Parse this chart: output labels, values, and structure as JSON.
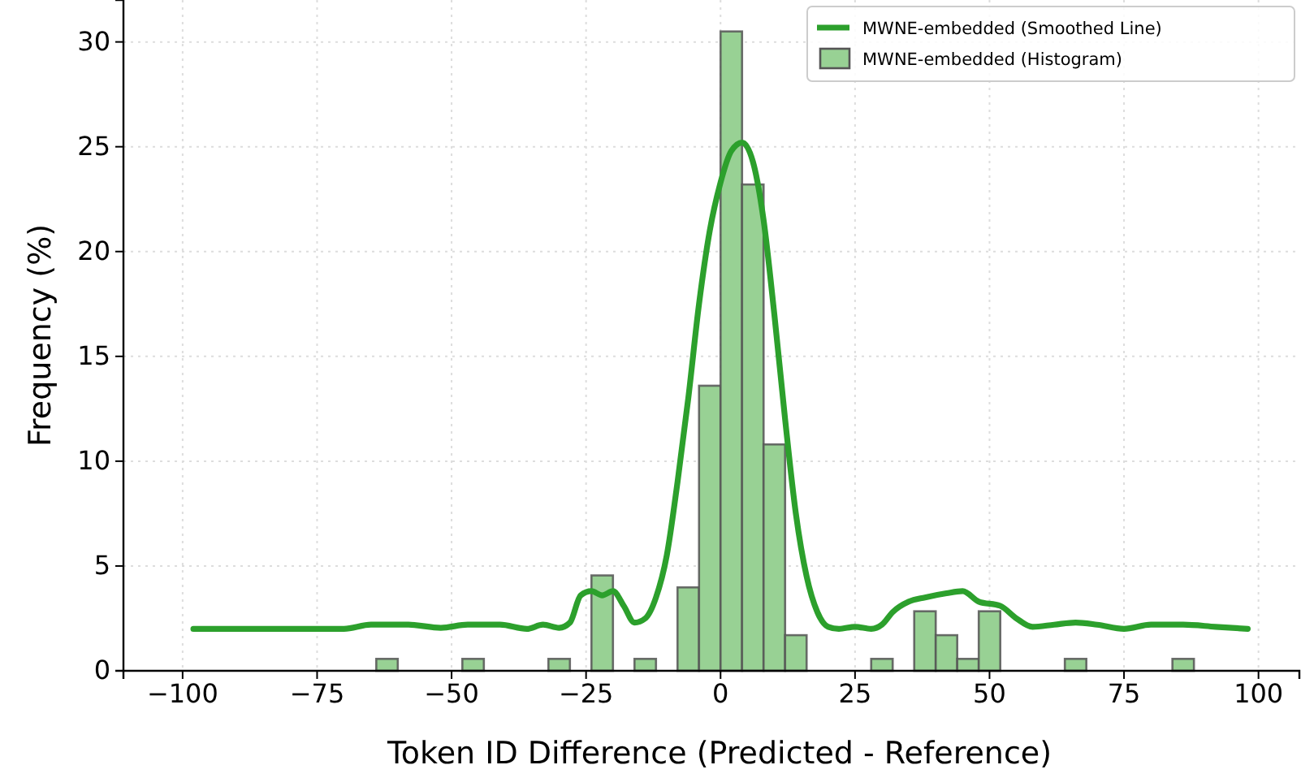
{
  "chart_data": {
    "type": "histogram",
    "xlabel": "Token ID Difference (Predicted - Reference)",
    "ylabel": "Frequency (%)",
    "xlim": [
      -111,
      107.6
    ],
    "ylim": [
      0,
      32
    ],
    "xticks": [
      {
        "value": -100,
        "label": "−100"
      },
      {
        "value": -75,
        "label": "−75"
      },
      {
        "value": -50,
        "label": "−50"
      },
      {
        "value": -25,
        "label": "−25"
      },
      0,
      25,
      50,
      75,
      100
    ],
    "yticks": [
      0,
      5,
      10,
      15,
      20,
      25,
      30
    ],
    "grid": true,
    "legend": "top right",
    "series": [
      {
        "type": "line",
        "name": "MWNE-embedded (Smoothed Line)",
        "color": "#2ca02c",
        "x": [
          -98,
          -70,
          -65,
          -58,
          -52,
          -47,
          -41,
          -36,
          -33,
          -30,
          -28,
          -26,
          -24,
          -22,
          -20,
          -18,
          -16,
          -14,
          -12,
          -10,
          -8,
          -6,
          -4,
          -2,
          0,
          2,
          4,
          6,
          8,
          10,
          12,
          14,
          16,
          18,
          20,
          22,
          25,
          28,
          30,
          32,
          35,
          38,
          42,
          45,
          48,
          52,
          55,
          58,
          62,
          66,
          70,
          75,
          80,
          86,
          92,
          98
        ],
        "values": [
          2.0,
          2.0,
          2.2,
          2.2,
          2.05,
          2.2,
          2.2,
          2.0,
          2.2,
          2.05,
          2.3,
          3.6,
          3.8,
          3.6,
          3.8,
          3.1,
          2.3,
          2.5,
          3.5,
          5.5,
          9,
          13,
          17.5,
          21,
          23.3,
          24.8,
          25.2,
          24.3,
          21.5,
          17,
          12,
          7.5,
          4.5,
          2.8,
          2.1,
          2.0,
          2.1,
          2.0,
          2.2,
          2.8,
          3.3,
          3.5,
          3.7,
          3.8,
          3.3,
          3.1,
          2.5,
          2.1,
          2.2,
          2.3,
          2.2,
          2.0,
          2.2,
          2.2,
          2.1,
          2.0
        ]
      },
      {
        "name": "MWNE-embedded (Histogram)",
        "color": "#98d194",
        "bins": [
          -64,
          -60,
          -56,
          -52,
          -48,
          -44,
          -40,
          -36,
          -32,
          -28,
          -24,
          -20,
          -16,
          -12,
          -8,
          -4,
          0,
          4,
          8,
          12,
          16,
          20,
          24,
          28,
          32,
          36,
          40,
          44,
          48,
          52,
          56,
          60,
          64,
          68,
          72,
          76,
          80,
          84,
          88
        ],
        "values": [
          0.57,
          0,
          0,
          0,
          0.57,
          0,
          0,
          0,
          0.57,
          0,
          4.55,
          0,
          0.57,
          0,
          3.98,
          13.6,
          30.5,
          23.2,
          10.8,
          1.7,
          0,
          0,
          0,
          0.57,
          0,
          2.84,
          1.7,
          0.57,
          2.84,
          0,
          0,
          0,
          0.57,
          0,
          0,
          0,
          0,
          0.57
        ]
      }
    ]
  }
}
